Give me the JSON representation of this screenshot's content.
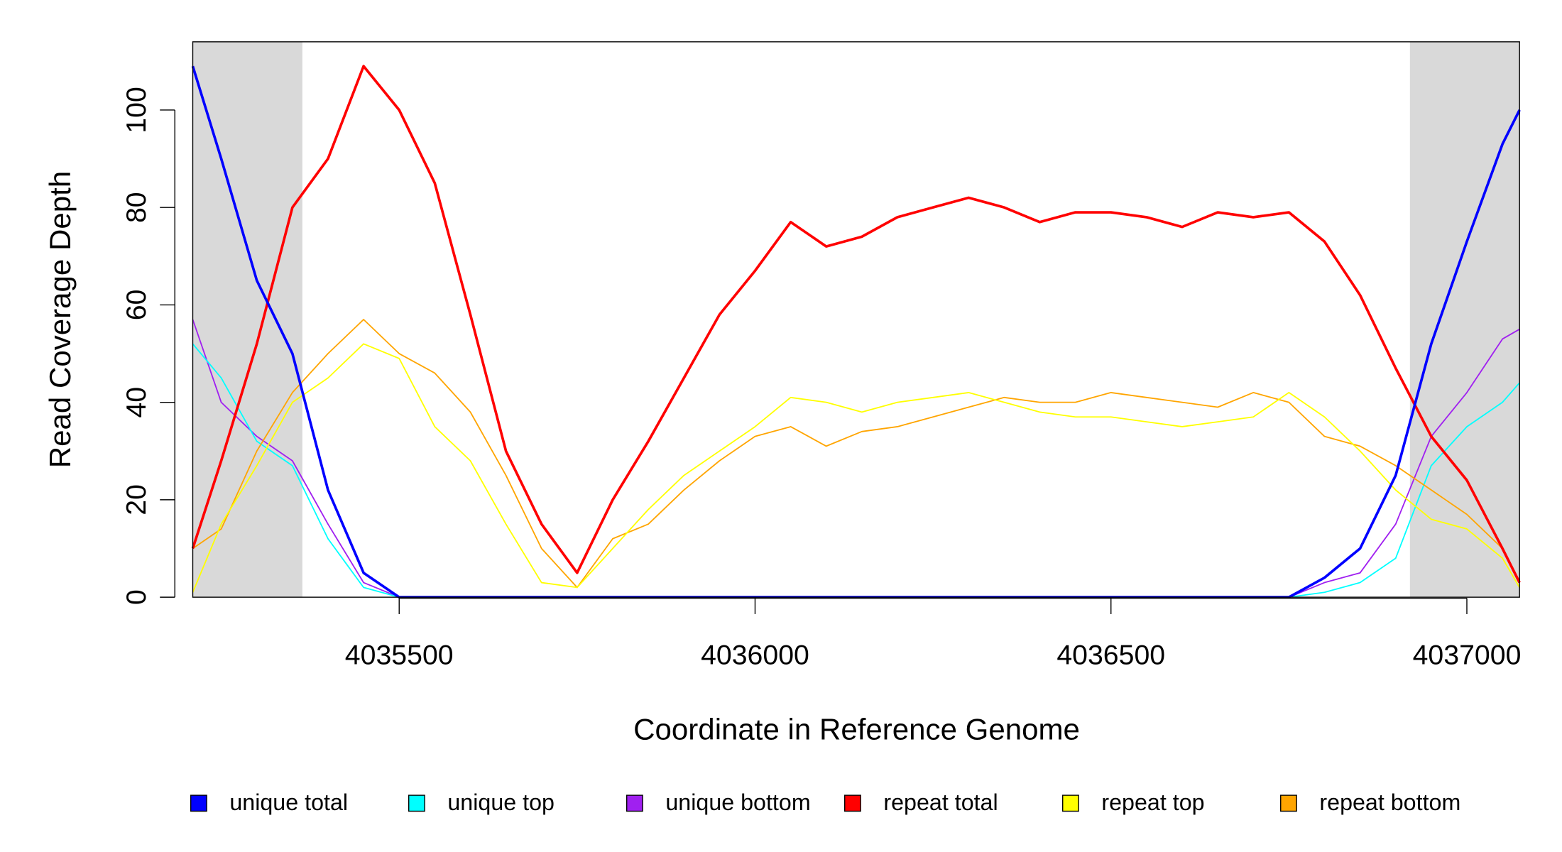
{
  "chart_data": {
    "type": "line",
    "x_label": "Coordinate in Reference Genome",
    "y_label": "Read Coverage Depth",
    "x": [
      4035210,
      4035250,
      4035300,
      4035350,
      4035400,
      4035450,
      4035500,
      4035550,
      4035600,
      4035650,
      4035700,
      4035750,
      4035800,
      4035850,
      4035900,
      4035950,
      4036000,
      4036050,
      4036100,
      4036150,
      4036200,
      4036250,
      4036300,
      4036350,
      4036400,
      4036450,
      4036500,
      4036550,
      4036600,
      4036650,
      4036700,
      4036750,
      4036800,
      4036850,
      4036900,
      4036950,
      4037000,
      4037050,
      4037074
    ],
    "series": [
      {
        "name": "unique total",
        "color": "#0000ff",
        "values": [
          109,
          90,
          65,
          50,
          22,
          5,
          0,
          0,
          0,
          0,
          0,
          0,
          0,
          0,
          0,
          0,
          0,
          0,
          0,
          0,
          0,
          0,
          0,
          0,
          0,
          0,
          0,
          0,
          0,
          0,
          0,
          0,
          4,
          10,
          25,
          52,
          73,
          93,
          100
        ]
      },
      {
        "name": "unique top",
        "color": "#00ffff",
        "values": [
          52,
          45,
          32,
          27,
          12,
          2,
          0,
          0,
          0,
          0,
          0,
          0,
          0,
          0,
          0,
          0,
          0,
          0,
          0,
          0,
          0,
          0,
          0,
          0,
          0,
          0,
          0,
          0,
          0,
          0,
          0,
          0,
          1,
          3,
          8,
          27,
          35,
          40,
          44
        ]
      },
      {
        "name": "unique bottom",
        "color": "#a020f0",
        "values": [
          57,
          40,
          33,
          28,
          15,
          3,
          0,
          0,
          0,
          0,
          0,
          0,
          0,
          0,
          0,
          0,
          0,
          0,
          0,
          0,
          0,
          0,
          0,
          0,
          0,
          0,
          0,
          0,
          0,
          0,
          0,
          0,
          3,
          5,
          15,
          33,
          42,
          53,
          55
        ]
      },
      {
        "name": "repeat total",
        "color": "#ff0000",
        "values": [
          10,
          28,
          52,
          80,
          90,
          109,
          100,
          85,
          58,
          30,
          15,
          5,
          20,
          32,
          45,
          58,
          67,
          77,
          72,
          74,
          78,
          80,
          82,
          80,
          77,
          79,
          79,
          78,
          76,
          79,
          78,
          79,
          73,
          62,
          47,
          33,
          24,
          10,
          3
        ]
      },
      {
        "name": "repeat top",
        "color": "#ffff00",
        "values": [
          1,
          15,
          27,
          40,
          45,
          52,
          49,
          35,
          28,
          15,
          3,
          2,
          10,
          18,
          25,
          30,
          35,
          41,
          40,
          38,
          40,
          41,
          42,
          40,
          38,
          37,
          37,
          36,
          35,
          36,
          37,
          42,
          37,
          30,
          22,
          16,
          14,
          8,
          2
        ]
      },
      {
        "name": "repeat bottom",
        "color": "#ffa500",
        "values": [
          10,
          14,
          30,
          42,
          50,
          57,
          50,
          46,
          38,
          25,
          10,
          2,
          12,
          15,
          22,
          28,
          33,
          35,
          31,
          34,
          35,
          37,
          39,
          41,
          40,
          40,
          42,
          41,
          40,
          39,
          42,
          40,
          33,
          31,
          27,
          22,
          17,
          10,
          3
        ]
      }
    ],
    "shaded_regions": [
      [
        4035210,
        4035364
      ],
      [
        4036920,
        4037074
      ]
    ],
    "xlim": [
      4035210,
      4037074
    ],
    "ylim": [
      0,
      114
    ],
    "xticks": [
      4035500,
      4036000,
      4036500,
      4037000
    ],
    "yticks": [
      0,
      20,
      40,
      60,
      80,
      100
    ]
  }
}
